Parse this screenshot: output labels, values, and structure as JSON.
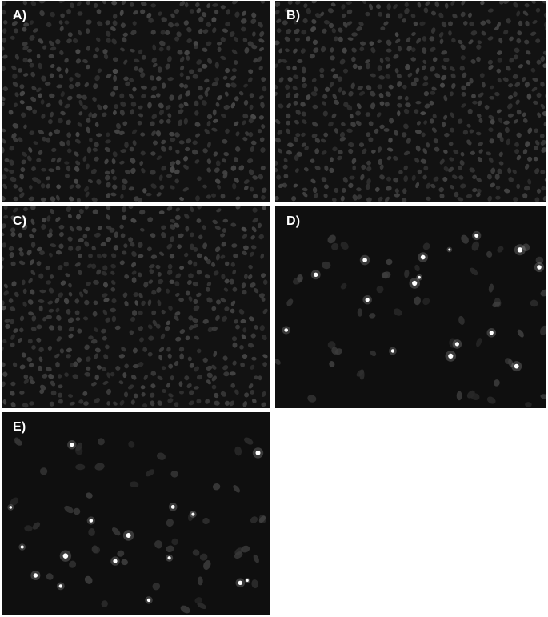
{
  "figure": {
    "panels": [
      {
        "label": "A)",
        "type": "dense",
        "seed": 11
      },
      {
        "label": "B)",
        "type": "dense",
        "seed": 23
      },
      {
        "label": "C)",
        "type": "dense",
        "seed": 37
      },
      {
        "label": "D)",
        "type": "sparse",
        "seed": 53
      },
      {
        "label": "E)",
        "type": "sparse",
        "seed": 71
      }
    ]
  }
}
